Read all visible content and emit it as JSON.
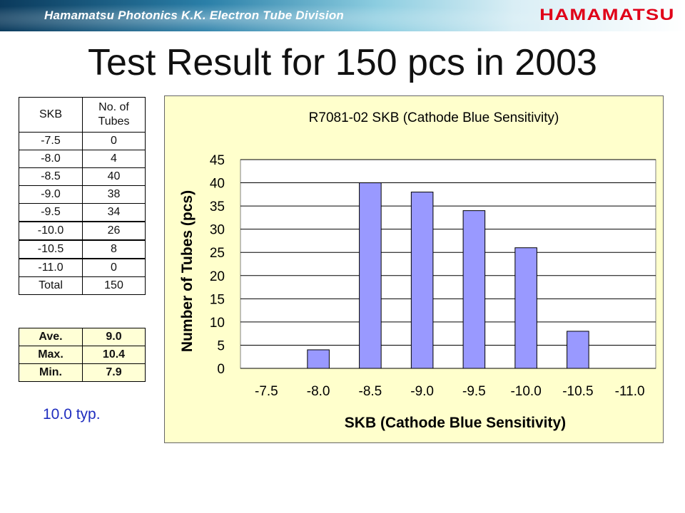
{
  "header": {
    "company": "Hamamatsu Photonics K.K.  Electron Tube Division",
    "logo": "HAMAMATSU"
  },
  "slide_title": "Test Result for 150 pcs in 2003",
  "table": {
    "headers": [
      "SKB",
      "No. of Tubes"
    ],
    "header_line2": "Tubes",
    "rows": [
      {
        "skb": "-7.5",
        "count": "0"
      },
      {
        "skb": "-8.0",
        "count": "4"
      },
      {
        "skb": "-8.5",
        "count": "40"
      },
      {
        "skb": "-9.0",
        "count": "38"
      },
      {
        "skb": "-9.5",
        "count": "34"
      },
      {
        "skb": "-10.0",
        "count": "26"
      },
      {
        "skb": "-10.5",
        "count": "8"
      },
      {
        "skb": "-11.0",
        "count": "0"
      },
      {
        "skb": "Total",
        "count": "150"
      }
    ]
  },
  "stats": [
    {
      "label": "Ave.",
      "value": "9.0"
    },
    {
      "label": "Max.",
      "value": "10.4"
    },
    {
      "label": "Min.",
      "value": "7.9"
    }
  ],
  "typ_note": "10.0 typ.",
  "chart_data": {
    "type": "bar",
    "title": "R7081-02 SKB (Cathode Blue Sensitivity)",
    "xlabel": "SKB (Cathode Blue Sensitivity)",
    "ylabel": "Number of Tubes (pcs)",
    "categories": [
      "-7.5",
      "-8.0",
      "-8.5",
      "-9.0",
      "-9.5",
      "-10.0",
      "-10.5",
      "-11.0"
    ],
    "values": [
      0,
      4,
      40,
      38,
      34,
      26,
      8,
      0
    ],
    "ylim": [
      0,
      45
    ],
    "yticks": [
      "0",
      "5",
      "10",
      "15",
      "20",
      "25",
      "30",
      "35",
      "40",
      "45"
    ],
    "grid": true,
    "legend": "none",
    "colors": {
      "bar": "#9999ff",
      "background": "#ffffcc",
      "plot_area": "#ffffff"
    }
  }
}
